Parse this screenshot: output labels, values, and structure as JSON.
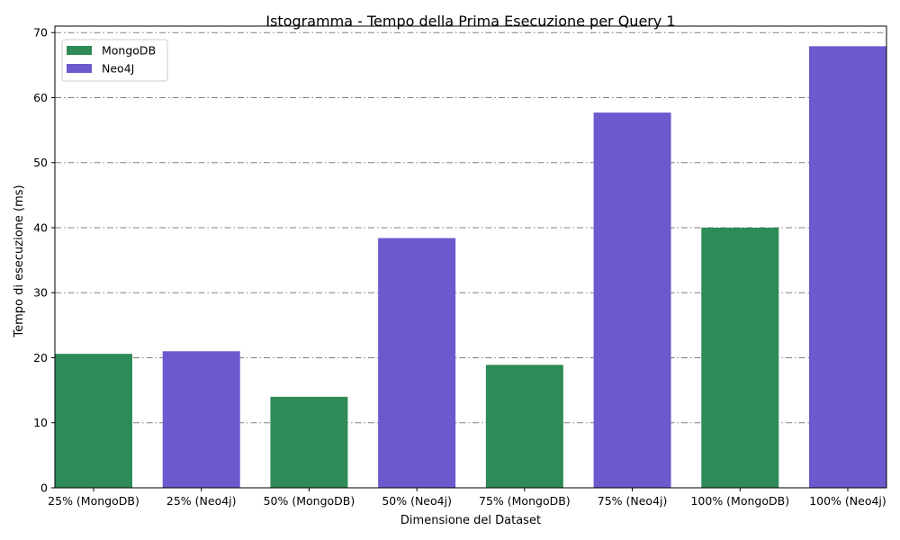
{
  "chart_data": {
    "type": "bar",
    "title": "Istogramma - Tempo della Prima Esecuzione per Query 1",
    "xlabel": "Dimensione del Dataset",
    "ylabel": "Tempo di esecuzione (ms)",
    "categories": [
      "25% (MongoDB)",
      "25% (Neo4j)",
      "50% (MongoDB)",
      "50% (Neo4j)",
      "75% (MongoDB)",
      "75% (Neo4j)",
      "100% (MongoDB)",
      "100% (Neo4j)"
    ],
    "values": [
      20.6,
      21.0,
      14.0,
      38.4,
      18.9,
      57.7,
      40.0,
      67.9
    ],
    "bar_series": [
      "MongoDB",
      "Neo4J",
      "MongoDB",
      "Neo4J",
      "MongoDB",
      "Neo4J",
      "MongoDB",
      "Neo4J"
    ],
    "series": [
      {
        "name": "MongoDB",
        "color": "#2e8b57"
      },
      {
        "name": "Neo4J",
        "color": "#6a5acd"
      }
    ],
    "ylim": [
      0,
      71
    ],
    "yticks": [
      0,
      10,
      20,
      30,
      40,
      50,
      60,
      70
    ],
    "grid": "y",
    "legend_position": "top-left"
  }
}
